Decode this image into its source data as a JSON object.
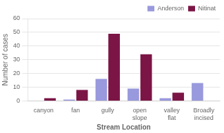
{
  "chart_data": {
    "type": "bar",
    "categories": [
      "canyon",
      "fan",
      "gully",
      "open\nslope",
      "valley\nflat",
      "Broadly\nincised"
    ],
    "series": [
      {
        "name": "Anderson",
        "color": "#9999dd",
        "values": [
          0,
          1,
          16,
          9,
          2,
          13
        ]
      },
      {
        "name": "Nitinat",
        "color": "#7b1545",
        "values": [
          2,
          8,
          49,
          34,
          6,
          0
        ]
      }
    ],
    "xlabel": "Stream Location",
    "ylabel": "Number of cases",
    "ylim": [
      0,
      60
    ],
    "yticks": [
      0,
      10,
      20,
      30,
      40,
      50,
      60
    ],
    "grid": true,
    "legend": "upper right"
  }
}
